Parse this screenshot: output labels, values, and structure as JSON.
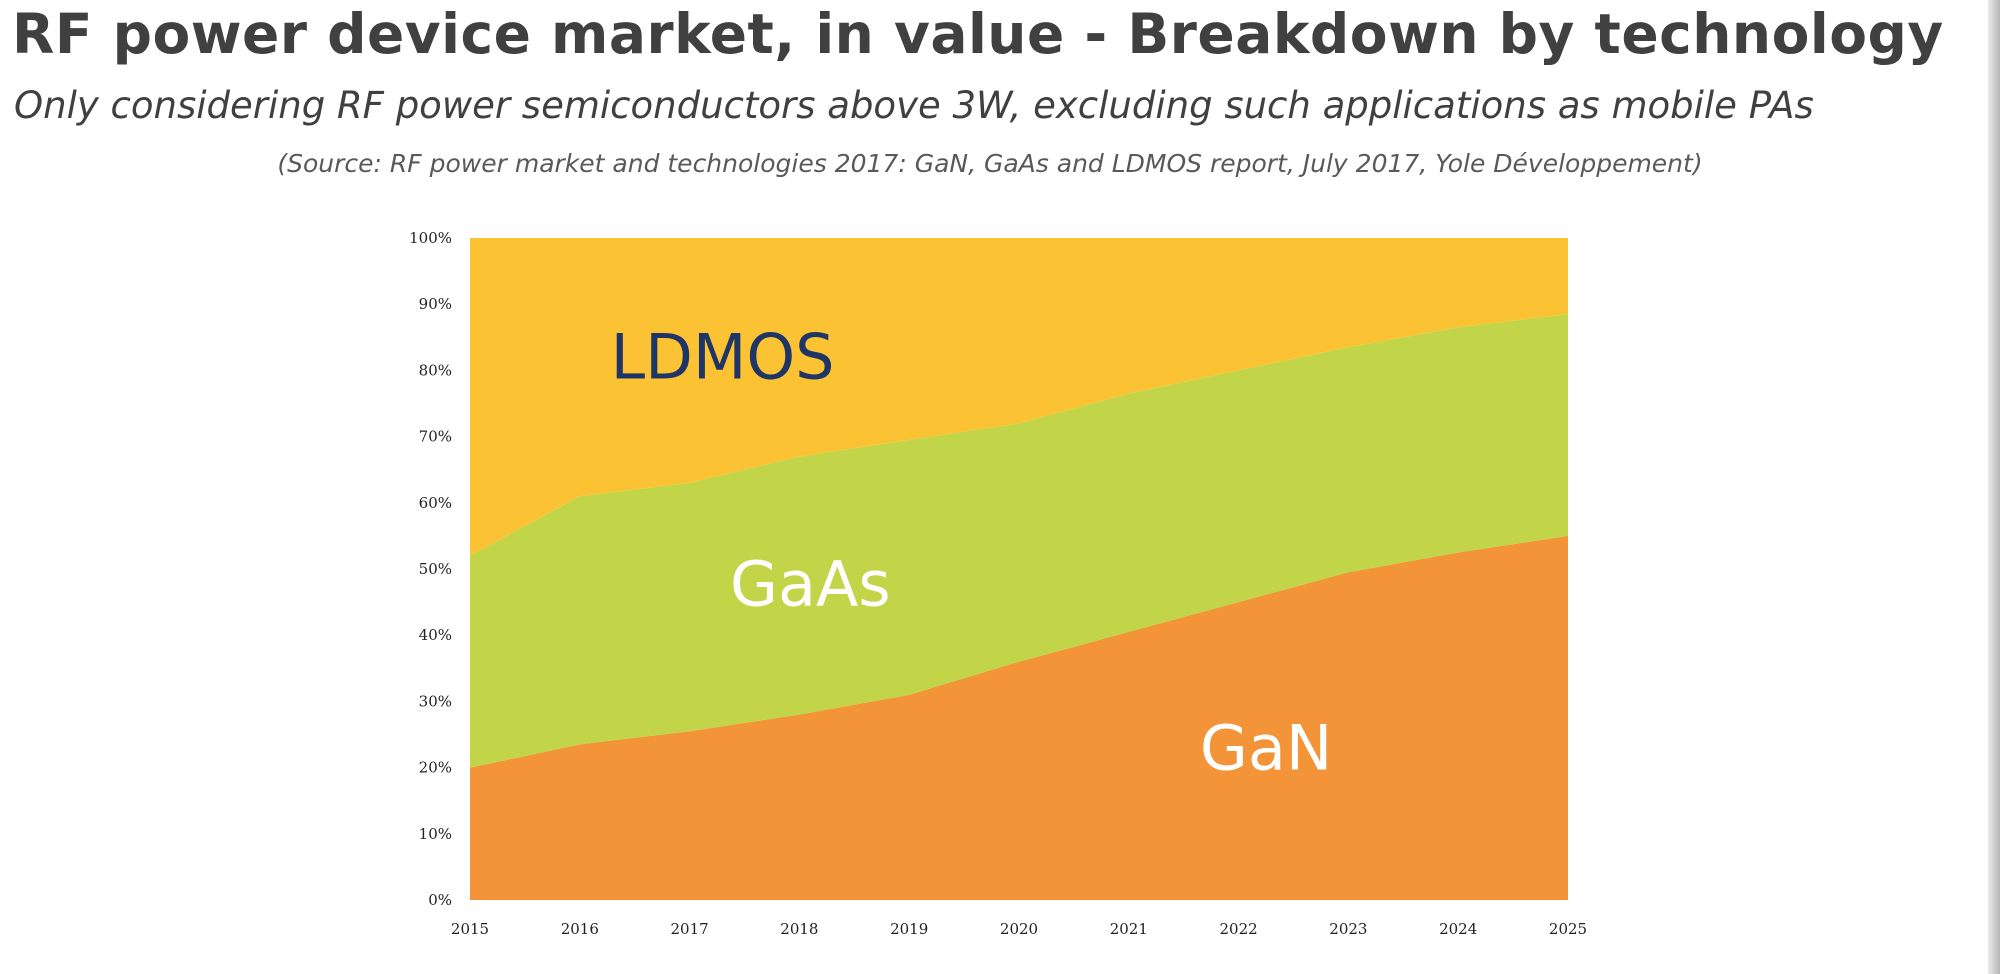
{
  "header": {
    "title": "RF power device market, in value - Breakdown by technology",
    "subtitle": "Only considering RF power semiconductors above 3W, excluding such applications as mobile PAs",
    "source": "(Source: RF power market and technologies 2017: GaN, GaAs and LDMOS report, July 2017, Yole Développement)"
  },
  "chart_data": {
    "type": "area",
    "stacked": true,
    "normalized_percent": true,
    "title": "",
    "xlabel": "",
    "ylabel": "",
    "x": [
      "2015",
      "2016",
      "2017",
      "2018",
      "2019",
      "2020",
      "2021",
      "2022",
      "2023",
      "2024",
      "2025"
    ],
    "ylim": [
      0,
      100
    ],
    "y_ticks": [
      "0%",
      "10%",
      "20%",
      "30%",
      "40%",
      "50%",
      "60%",
      "70%",
      "80%",
      "90%",
      "100%"
    ],
    "grid": false,
    "series": [
      {
        "name": "GaN",
        "color": "#f29437",
        "label_color": "#ffffff",
        "values": [
          20,
          23.5,
          25.5,
          28,
          31,
          36,
          40.5,
          45,
          49.5,
          52.5,
          55
        ]
      },
      {
        "name": "GaAs",
        "color": "#c2d549",
        "label_color": "#ffffff",
        "values": [
          32,
          37.5,
          37.5,
          39,
          38.5,
          36,
          36,
          35,
          34,
          34,
          33.5
        ]
      },
      {
        "name": "LDMOS",
        "color": "#fbc334",
        "label_color": "#1f3566",
        "values": [
          48,
          39,
          37,
          33,
          30.5,
          28,
          23.5,
          20,
          16.5,
          13.5,
          11.5
        ]
      }
    ]
  }
}
